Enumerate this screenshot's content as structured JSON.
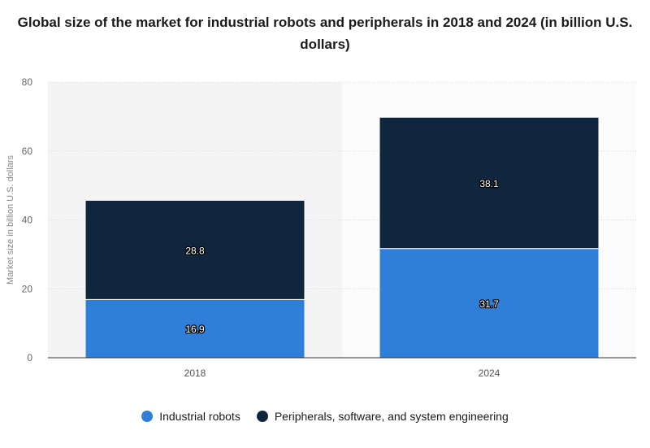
{
  "chart_data": {
    "type": "bar",
    "stacked": true,
    "title": "Global size of the market for industrial robots and peripherals in 2018 and 2024 (in billion U.S. dollars)",
    "xlabel": "",
    "ylabel": "Market size in billion U.S. dollars",
    "categories": [
      "2018",
      "2024"
    ],
    "ylim": [
      0,
      80
    ],
    "yticks": [
      0,
      20,
      40,
      60,
      80
    ],
    "grid": true,
    "legend_position": "bottom",
    "series": [
      {
        "name": "Industrial robots",
        "values": [
          16.9,
          31.7
        ],
        "color": "#2f7ed8"
      },
      {
        "name": "Peripherals, software, and system engineering",
        "values": [
          28.8,
          38.1
        ],
        "color": "#10263d"
      }
    ]
  }
}
